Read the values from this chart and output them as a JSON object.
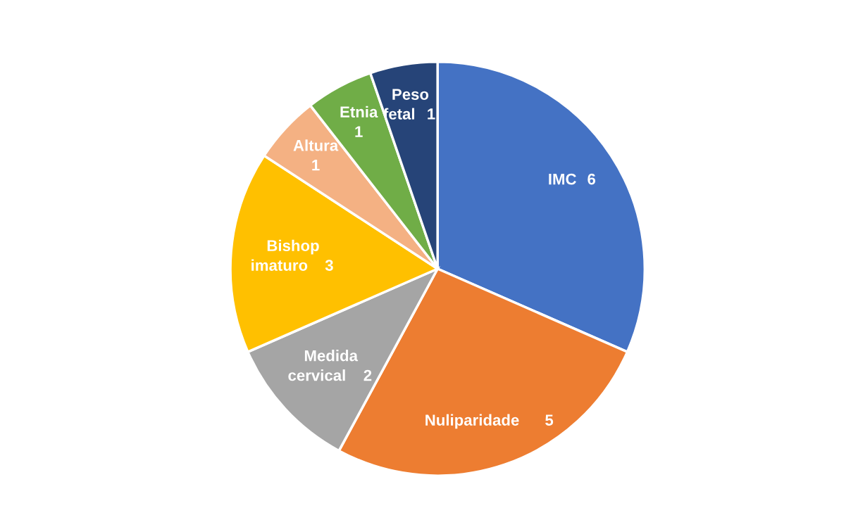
{
  "chart_data": {
    "type": "pie",
    "categories": [
      "IMC",
      "Nuliparidade",
      "Medida\ncervical",
      "Bishop\nimaturo",
      "Altura",
      "Etnia",
      "Peso\nfetal"
    ],
    "values": [
      6,
      5,
      2,
      3,
      1,
      1,
      1
    ],
    "colors": [
      "#4472c4",
      "#ed7d31",
      "#a5a5a5",
      "#ffc000",
      "#f4b183",
      "#70ad47",
      "#264478"
    ],
    "data_labels": true,
    "legend": false
  }
}
